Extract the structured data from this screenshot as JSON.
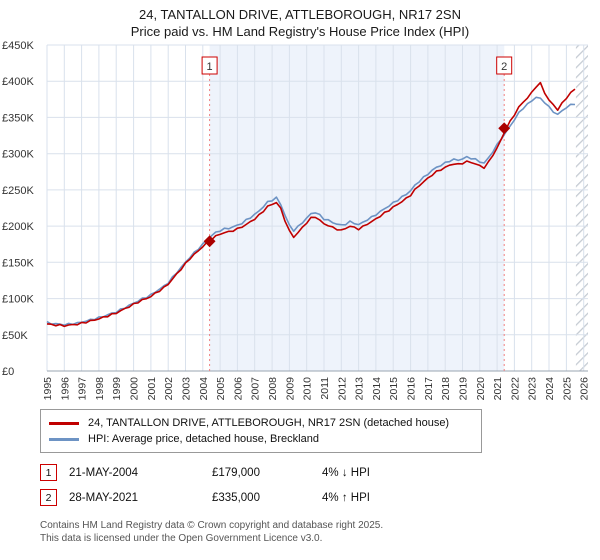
{
  "chart_data": {
    "type": "line",
    "title": "24, TANTALLON DRIVE, ATTLEBOROUGH, NR17 2SN",
    "subtitle": "Price paid vs. HM Land Registry's House Price Index (HPI)",
    "xlim": [
      1995,
      2026.25
    ],
    "ylim": [
      0,
      450000
    ],
    "ytick_step": 50000,
    "ytick_labels": [
      "£0",
      "£50K",
      "£100K",
      "£150K",
      "£200K",
      "£250K",
      "£300K",
      "£350K",
      "£400K",
      "£450K"
    ],
    "xtick_labels": [
      "1995",
      "1996",
      "1997",
      "1998",
      "1999",
      "2000",
      "2001",
      "2002",
      "2003",
      "2004",
      "2005",
      "2006",
      "2007",
      "2008",
      "2009",
      "2010",
      "2011",
      "2012",
      "2013",
      "2014",
      "2015",
      "2016",
      "2017",
      "2018",
      "2019",
      "2020",
      "2021",
      "2022",
      "2023",
      "2024",
      "2025",
      "2026"
    ],
    "x_start": 1995,
    "x_step": 0.25,
    "series": [
      {
        "name": "24, TANTALLON DRIVE, ATTLEBOROUGH, NR17 2SN (detached house)",
        "color": "#c00000",
        "values": [
          65000,
          64000,
          63500,
          63000,
          62500,
          63000,
          64000,
          64500,
          66000,
          67500,
          69000,
          70500,
          72000,
          74000,
          76000,
          78000,
          80000,
          83000,
          86000,
          89000,
          92000,
          95000,
          98000,
          100000,
          103000,
          107000,
          111000,
          115000,
          120000,
          127000,
          134000,
          141000,
          148000,
          155000,
          161000,
          166000,
          172000,
          177000,
          182000,
          186000,
          189000,
          191000,
          192000,
          194000,
          196000,
          199000,
          202000,
          206000,
          210000,
          215000,
          221000,
          227000,
          230000,
          233000,
          224000,
          208000,
          193000,
          185000,
          191000,
          198000,
          205000,
          211000,
          213000,
          208000,
          203000,
          201000,
          198000,
          196000,
          194000,
          197000,
          200000,
          198000,
          196000,
          199000,
          203000,
          206000,
          210000,
          214000,
          218000,
          222000,
          226000,
          230000,
          234000,
          238000,
          243000,
          250000,
          256000,
          261000,
          266000,
          271000,
          275000,
          278000,
          281000,
          284000,
          286000,
          285000,
          287000,
          289000,
          288000,
          286000,
          283000,
          281000,
          288000,
          298000,
          308000,
          320000,
          334000,
          344000,
          354000,
          364000,
          371000,
          377000,
          384000,
          393000,
          397000,
          384000,
          374000,
          367000,
          361000,
          369000,
          377000,
          384000,
          389000
        ]
      },
      {
        "name": "HPI: Average price, detached house, Breckland",
        "color": "#6d93c4",
        "values": [
          67000,
          65500,
          65000,
          64500,
          64000,
          64500,
          65500,
          66000,
          67500,
          69000,
          70500,
          72000,
          73500,
          75500,
          77500,
          79500,
          81500,
          84500,
          87500,
          90500,
          93500,
          96500,
          99500,
          102000,
          105000,
          109000,
          113000,
          117000,
          122000,
          129000,
          136000,
          143000,
          150000,
          157000,
          163000,
          169000,
          175000,
          181000,
          187000,
          191000,
          194000,
          196000,
          197000,
          199000,
          201000,
          204000,
          208000,
          212000,
          216000,
          221000,
          227000,
          233000,
          236000,
          239000,
          230000,
          215000,
          201000,
          194000,
          199000,
          205000,
          211000,
          217000,
          219000,
          215000,
          210000,
          208000,
          205000,
          203000,
          201000,
          203000,
          206000,
          204000,
          202000,
          205000,
          209000,
          212000,
          216000,
          220000,
          224000,
          228000,
          232000,
          236000,
          240000,
          244000,
          249000,
          256000,
          262000,
          267000,
          272000,
          277000,
          281000,
          284000,
          287000,
          290000,
          292000,
          291000,
          293000,
          295000,
          294000,
          292000,
          289000,
          287000,
          294000,
          303000,
          312000,
          321000,
          329000,
          338000,
          347000,
          356000,
          363000,
          368000,
          373000,
          378000,
          376000,
          371000,
          364000,
          358000,
          354000,
          359000,
          364000,
          367000,
          369000
        ]
      }
    ],
    "sales": [
      {
        "label": "1",
        "x": 2004.39,
        "y": 179000
      },
      {
        "label": "2",
        "x": 2021.41,
        "y": 335000
      }
    ],
    "shaded_region": [
      2004.39,
      2021.41
    ],
    "hatch_region": [
      2025.55,
      2026.25
    ],
    "colors": {
      "grid": "#d9e1ec",
      "shade": "#eef3fb",
      "dashed": "#f08080",
      "flag_border": "#cc0000",
      "marker": "#aa0000",
      "hatch": "#c4cad2"
    }
  },
  "annotations": [
    {
      "num": "1",
      "date": "21-MAY-2004",
      "price": "£179,000",
      "hpi": "4% ↓ HPI"
    },
    {
      "num": "2",
      "date": "28-MAY-2021",
      "price": "£335,000",
      "hpi": "4% ↑ HPI"
    }
  ],
  "footer": {
    "line1": "Contains HM Land Registry data © Crown copyright and database right 2025.",
    "line2": "This data is licensed under the Open Government Licence v3.0."
  }
}
